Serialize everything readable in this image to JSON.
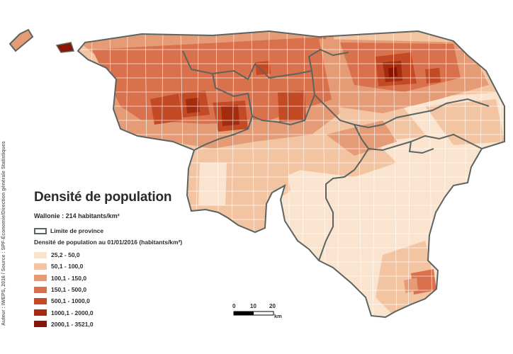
{
  "map": {
    "title": "Densité de population",
    "average": "Wallonie : 214 habitants/km²",
    "province_label": "Limite de province",
    "legend_title": "Densité de population au 01/01/2016 (habitants/km²)",
    "legend": [
      {
        "label": "25,2 - 50,0",
        "color": "#fbe4cf"
      },
      {
        "label": "50,1 - 100,0",
        "color": "#f3c4a2"
      },
      {
        "label": "100,1 - 150,0",
        "color": "#e59c76"
      },
      {
        "label": "150,1 - 500,0",
        "color": "#d9714d"
      },
      {
        "label": "500,1 - 1000,0",
        "color": "#c24b26"
      },
      {
        "label": "1000,1 - 2000,0",
        "color": "#a52b0f"
      },
      {
        "label": "2000,1 - 3521,0",
        "color": "#8a1505"
      }
    ],
    "credit": "Auteur : IWEPS, 2016 / Source : SPF-Économie/Direction générale Statistiques",
    "scale": {
      "ticks": [
        "0",
        "10",
        "20"
      ],
      "unit": "km"
    },
    "province_color": "#5c6460"
  }
}
